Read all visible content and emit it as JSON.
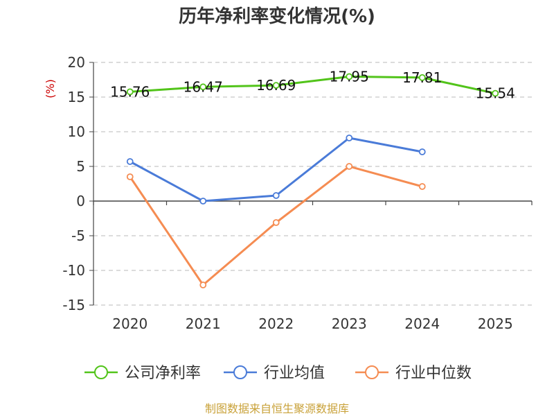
{
  "chart_data": {
    "type": "line",
    "title": "历年净利率变化情况(%)",
    "ylabel": "(%)",
    "categories": [
      "2020",
      "2021",
      "2022",
      "2023",
      "2024",
      "2025"
    ],
    "ylim": [
      -15,
      20
    ],
    "yticks": [
      20,
      15,
      10,
      5,
      0,
      -5,
      -10,
      -15
    ],
    "grid": true,
    "legend_position": "bottom",
    "series": [
      {
        "name": "公司净利率",
        "color": "#52c41a",
        "values": [
          15.76,
          16.47,
          16.69,
          17.95,
          17.81,
          15.54
        ],
        "labels": [
          "15.76",
          "16.47",
          "16.69",
          "17.95",
          "17.81",
          "15.54"
        ]
      },
      {
        "name": "行业均值",
        "color": "#4a7bd8",
        "values": [
          5.7,
          0.0,
          0.8,
          9.1,
          7.1,
          null
        ]
      },
      {
        "name": "行业中位数",
        "color": "#f58c52",
        "values": [
          3.5,
          -12.1,
          -3.1,
          5.0,
          2.1,
          null
        ]
      }
    ]
  },
  "source_text": "制图数据来自恒生聚源数据库"
}
